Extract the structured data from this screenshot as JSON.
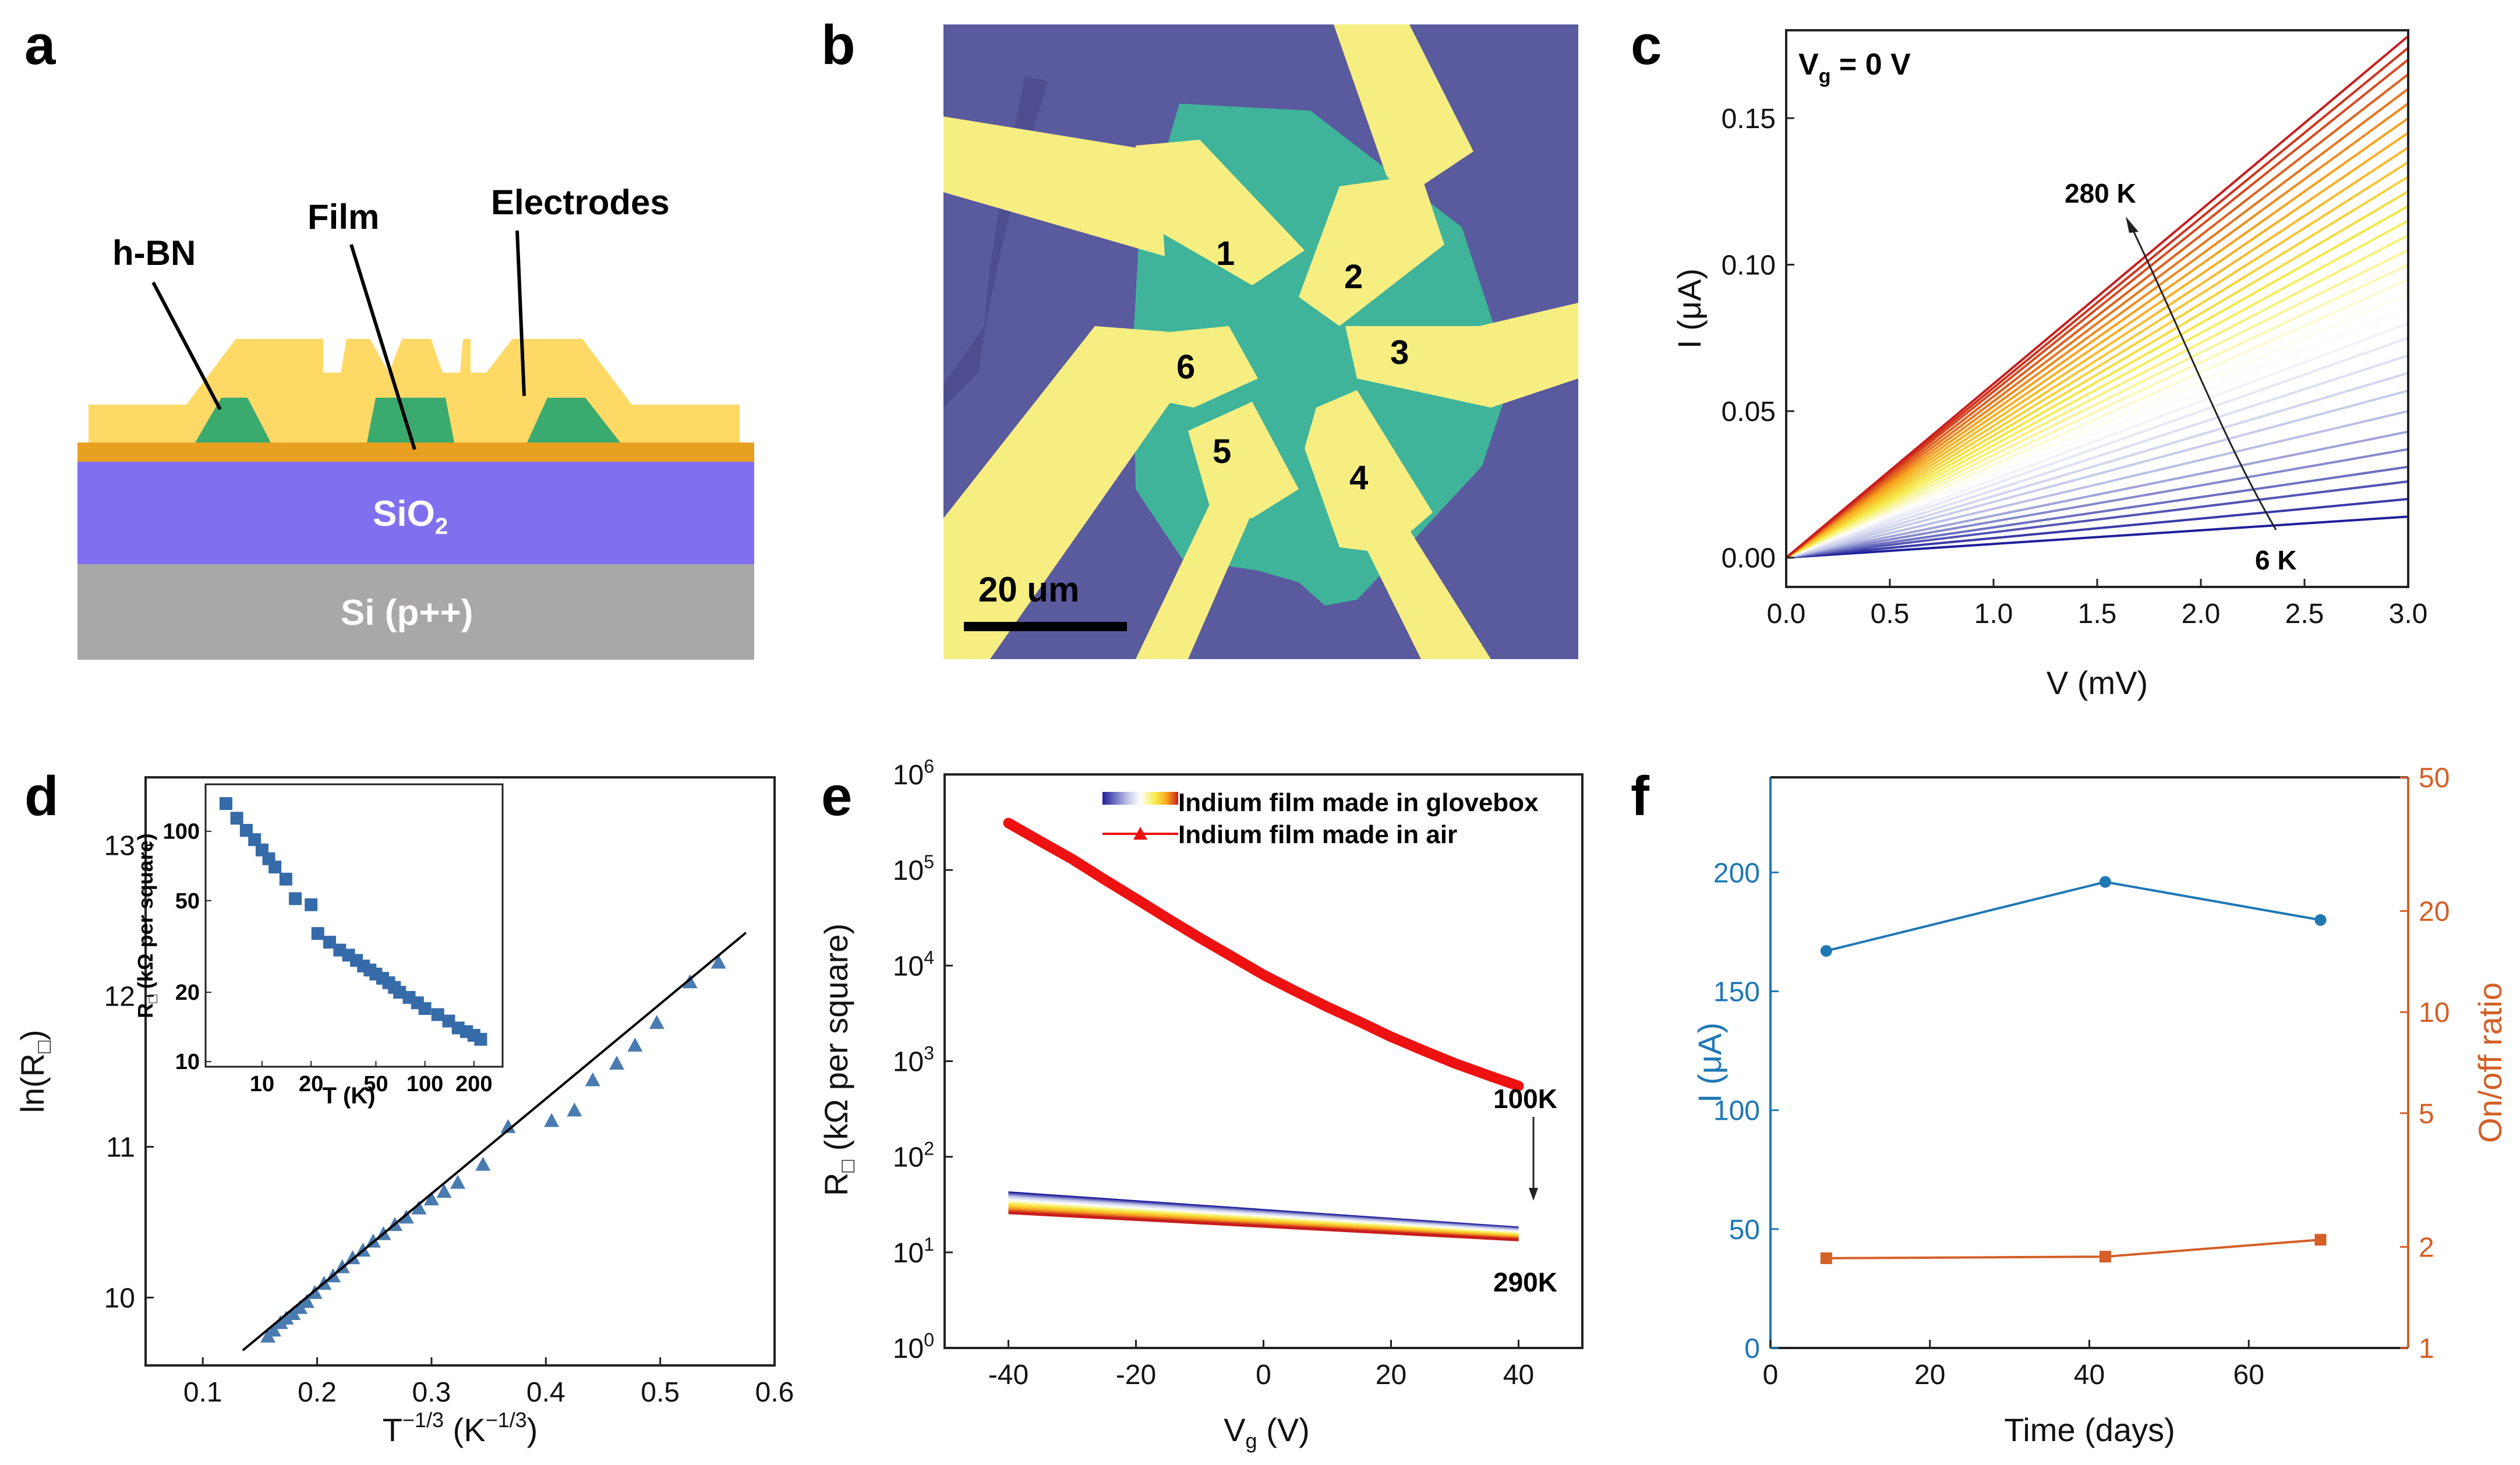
{
  "panels": {
    "a": "a",
    "b": "b",
    "c": "c",
    "d": "d",
    "e": "e",
    "f": "f"
  },
  "colors": {
    "background": "#ffffff",
    "gold": "#FFD966",
    "green": "#3BAA6E",
    "film_orange": "#E8A020",
    "sio2": "#8070F0",
    "si": "#A9A7A7",
    "micro_bg": "#5A5A9E",
    "micro_flake": "#3FB49A",
    "micro_gold": "#F7EE82",
    "blue_points": "#4A7BB0",
    "f_blue": "#1F77B4",
    "f_orange": "#D45F27",
    "e_red": "#EE1111"
  },
  "schematic": {
    "labels": {
      "hbn": "h-BN",
      "film": "Film",
      "electrodes": "Electrodes"
    },
    "sio2_text": "SiO",
    "sio2_sub": "2",
    "si_text": "Si (p++)"
  },
  "micrograph": {
    "electrode_labels": [
      "1",
      "2",
      "3",
      "4",
      "5",
      "6"
    ],
    "scale_label": "20 um"
  },
  "chart_data": [
    {
      "panel": "c",
      "type": "line",
      "title": "",
      "annotation_vg": "V",
      "annotation_vg_sub": "g",
      "annotation_vg_rest": " = 0 V",
      "xlabel": "V (mV)",
      "ylabel": "I (μA)",
      "xlim": [
        0.0,
        3.0
      ],
      "ylim": [
        -0.01,
        0.18
      ],
      "xticks": [
        "0.0",
        "0.5",
        "1.0",
        "1.5",
        "2.0",
        "2.5",
        "3.0"
      ],
      "yticks": [
        "0.00",
        "0.05",
        "0.10",
        "0.15"
      ],
      "xtick_values": [
        0,
        0.5,
        1.0,
        1.5,
        2.0,
        2.5,
        3.0
      ],
      "ytick_values": [
        0,
        0.05,
        0.1,
        0.15
      ],
      "annotations": {
        "high": "280 K",
        "low": "6 K"
      },
      "series_end_currents": [
        0.014,
        0.02,
        0.026,
        0.031,
        0.037,
        0.043,
        0.05,
        0.057,
        0.063,
        0.069,
        0.075,
        0.08,
        0.085,
        0.09,
        0.095,
        0.1,
        0.105,
        0.11,
        0.115,
        0.12,
        0.125,
        0.13,
        0.135,
        0.14,
        0.145,
        0.15,
        0.155,
        0.16,
        0.165,
        0.17,
        0.174,
        0.178
      ],
      "colormap": [
        "#1F1F9A",
        "#BFC4E6",
        "#FFFFFF",
        "#F5EC48",
        "#F9A51E",
        "#C81D1D"
      ]
    },
    {
      "panel": "d",
      "type": "scatter",
      "xlabel": "T",
      "xlabel_sup": "−1/3",
      "xlabel_unit": " (K",
      "xlabel_unit_sup": "−1/3",
      "xlabel_close": ")",
      "ylabel": "ln(R",
      "ylabel_sub": "□",
      "ylabel_close": ")",
      "xlim": [
        0.05,
        0.6
      ],
      "ylim": [
        9.55,
        13.45
      ],
      "xticks": [
        "0.1",
        "0.2",
        "0.3",
        "0.4",
        "0.5",
        "0.6"
      ],
      "yticks": [
        "10",
        "11",
        "12",
        "13"
      ],
      "xtick_values": [
        0.1,
        0.2,
        0.3,
        0.4,
        0.5,
        0.6
      ],
      "ytick_values": [
        10,
        11,
        12,
        13
      ],
      "x": [
        0.157,
        0.162,
        0.168,
        0.173,
        0.179,
        0.185,
        0.191,
        0.198,
        0.206,
        0.214,
        0.222,
        0.231,
        0.24,
        0.249,
        0.258,
        0.268,
        0.278,
        0.289,
        0.3,
        0.311,
        0.323,
        0.345,
        0.367,
        0.405,
        0.425,
        0.441,
        0.462,
        0.478,
        0.497,
        0.526,
        0.551
      ],
      "y": [
        9.74,
        9.78,
        9.83,
        9.86,
        9.89,
        9.93,
        9.97,
        10.03,
        10.09,
        10.14,
        10.2,
        10.26,
        10.31,
        10.37,
        10.42,
        10.48,
        10.53,
        10.59,
        10.65,
        10.7,
        10.76,
        10.88,
        11.13,
        11.17,
        11.24,
        11.44,
        11.55,
        11.67,
        11.82,
        12.09,
        12.22
      ],
      "fit_line": {
        "x": [
          0.135,
          0.575
        ],
        "y": [
          9.65,
          12.42
        ]
      },
      "inset": {
        "xlabel": "T (K)",
        "ylabel": "R",
        "ylabel_sub": "□",
        "ylabel_rest": " (kΩ per square)",
        "xlim": [
          4.5,
          300
        ],
        "ylim": [
          9.5,
          160
        ],
        "xscale": "log",
        "yscale": "log",
        "xticks": [
          "10",
          "20",
          "50",
          "100",
          "200"
        ],
        "yticks": [
          "10",
          "20",
          "50",
          "100"
        ],
        "xtick_values": [
          10,
          20,
          50,
          100,
          200
        ],
        "ytick_values": [
          10,
          20,
          50,
          100
        ],
        "x": [
          6,
          7,
          8,
          9,
          10,
          11,
          12,
          14,
          16,
          20,
          22,
          26,
          30,
          34,
          38,
          42,
          46,
          50,
          55,
          60,
          65,
          70,
          80,
          90,
          100,
          120,
          140,
          160,
          180,
          200,
          220
        ],
        "y": [
          132,
          114,
          101,
          92,
          83,
          76,
          70,
          62,
          51,
          48,
          36,
          33,
          30.5,
          29,
          27.5,
          26,
          25,
          24,
          23,
          22,
          21,
          20,
          19,
          18,
          17,
          16,
          15,
          14,
          13.5,
          13,
          12.5
        ]
      }
    },
    {
      "panel": "e",
      "type": "line",
      "xlabel": "V",
      "xlabel_sub": "g",
      "xlabel_rest": " (V)",
      "ylabel": "R",
      "ylabel_sub": "□",
      "ylabel_rest": " (kΩ per square)",
      "xlim": [
        -50,
        50
      ],
      "ylim": [
        1,
        1000000
      ],
      "yscale": "log",
      "xticks": [
        "-40",
        "-20",
        "0",
        "20",
        "40"
      ],
      "xtick_values": [
        -40,
        -20,
        0,
        20,
        40
      ],
      "ytick_base": "10",
      "ytick_exps": [
        "0",
        "1",
        "2",
        "3",
        "4",
        "5",
        "6"
      ],
      "ytick_values": [
        1,
        10,
        100,
        1000,
        10000,
        100000,
        1000000
      ],
      "legend": [
        "Indium film made in glovebox",
        "Indium film made in air"
      ],
      "legend_position": "top-right",
      "series": [
        {
          "name": "Indium film made in air",
          "x": [
            -40,
            -35,
            -30,
            -25,
            -20,
            -15,
            -10,
            -5,
            0,
            5,
            10,
            15,
            20,
            25,
            30,
            35,
            40
          ],
          "y": [
            310000,
            200000,
            130000,
            80000,
            50000,
            31000,
            19500,
            12500,
            8000,
            5400,
            3700,
            2600,
            1800,
            1300,
            950,
            720,
            550
          ]
        },
        {
          "name": "Indium film made in glovebox",
          "x": [
            -40,
            40
          ],
          "y_start": [
            42,
            26
          ],
          "y_end": [
            18,
            13.5
          ],
          "count": 14
        }
      ],
      "annotations": {
        "top": "100K",
        "bottom": "290K"
      },
      "colormap": [
        "#1F1F9A",
        "#BFC4E6",
        "#FFFFFF",
        "#F5EC48",
        "#F9A51E",
        "#C81D1D"
      ]
    },
    {
      "panel": "f",
      "type": "line",
      "xlabel": "Time (days)",
      "ylabel_left": "I (μA)",
      "ylabel_right": "On/off ratio",
      "xlim": [
        0,
        80
      ],
      "ylim_left": [
        0,
        240
      ],
      "ylim_right": [
        1,
        50
      ],
      "yscale_right": "log",
      "xticks": [
        "0",
        "20",
        "40",
        "60"
      ],
      "xtick_values": [
        0,
        20,
        40,
        60
      ],
      "yticks_left": [
        "0",
        "50",
        "100",
        "150",
        "200"
      ],
      "ytick_values_left": [
        0,
        50,
        100,
        150,
        200
      ],
      "yticks_right": [
        "1",
        "2",
        "5",
        "10",
        "20",
        "50"
      ],
      "ytick_values_right": [
        1,
        2,
        5,
        10,
        20,
        50
      ],
      "series": [
        {
          "name": "I (μA)",
          "axis": "left",
          "x": [
            7,
            42,
            69
          ],
          "y": [
            167,
            196,
            180
          ]
        },
        {
          "name": "On/off ratio",
          "axis": "right",
          "x": [
            7,
            42,
            69
          ],
          "y": [
            1.85,
            1.87,
            2.1
          ]
        }
      ]
    }
  ]
}
